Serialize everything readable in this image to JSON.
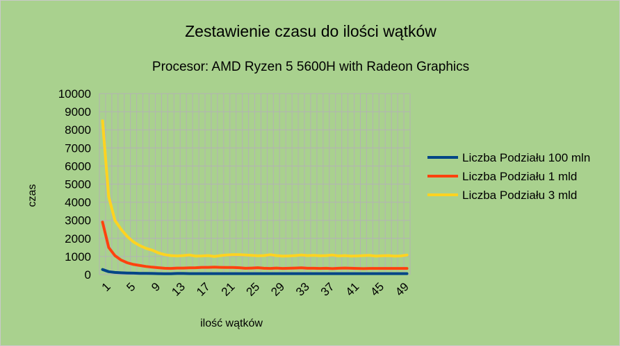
{
  "colors": {
    "chart_background": "#a9d18e",
    "plot_background": "#a9d18e",
    "gridline": "#b3b3b3",
    "series": [
      "#004586",
      "#ff420e",
      "#ffd320"
    ]
  },
  "chart_data": {
    "type": "line",
    "title": "Zestawienie czasu do ilości wątków",
    "subtitle": "Procesor: AMD Ryzen 5 5600H with Radeon Graphics",
    "xlabel": "ilość wątków",
    "ylabel": "czas",
    "ylim": [
      0,
      10000
    ],
    "y_ticks": [
      "0",
      "1000",
      "2000",
      "3000",
      "4000",
      "5000",
      "6000",
      "7000",
      "8000",
      "9000",
      "10000"
    ],
    "x": [
      1,
      2,
      3,
      4,
      5,
      6,
      7,
      8,
      9,
      10,
      11,
      12,
      13,
      14,
      15,
      16,
      17,
      18,
      19,
      20,
      21,
      22,
      23,
      24,
      25,
      26,
      27,
      28,
      29,
      30,
      31,
      32,
      33,
      34,
      35,
      36,
      37,
      38,
      39,
      40,
      41,
      42,
      43,
      44,
      45,
      46,
      47,
      48,
      49,
      50
    ],
    "x_tick_labels": [
      "1",
      "5",
      "9",
      "13",
      "17",
      "21",
      "25",
      "29",
      "33",
      "37",
      "41",
      "45",
      "49"
    ],
    "grid": true,
    "legend_position": "right",
    "series": [
      {
        "name": "Liczba Podziału 100 mln",
        "values": [
          280,
          160,
          120,
          100,
          90,
          80,
          70,
          65,
          60,
          55,
          50,
          50,
          60,
          60,
          55,
          55,
          55,
          55,
          55,
          55,
          55,
          55,
          55,
          55,
          55,
          55,
          55,
          55,
          55,
          55,
          55,
          55,
          55,
          55,
          55,
          55,
          55,
          55,
          55,
          55,
          55,
          55,
          55,
          55,
          55,
          55,
          55,
          55,
          55,
          55
        ]
      },
      {
        "name": "Liczba Podziału 1 mld",
        "values": [
          2900,
          1500,
          1050,
          800,
          650,
          560,
          500,
          450,
          410,
          380,
          350,
          340,
          360,
          360,
          370,
          380,
          400,
          400,
          410,
          400,
          390,
          390,
          380,
          350,
          360,
          380,
          350,
          340,
          360,
          340,
          350,
          360,
          370,
          350,
          350,
          340,
          350,
          330,
          350,
          360,
          350,
          340,
          330,
          340,
          340,
          340,
          340,
          340,
          340,
          340
        ]
      },
      {
        "name": "Liczba Podziału 3 mld",
        "values": [
          8500,
          4300,
          3000,
          2500,
          2100,
          1800,
          1600,
          1450,
          1350,
          1200,
          1100,
          1050,
          1030,
          1050,
          1080,
          1020,
          1030,
          1050,
          1000,
          1050,
          1080,
          1100,
          1100,
          1080,
          1060,
          1040,
          1050,
          1100,
          1050,
          1020,
          1030,
          1050,
          1080,
          1050,
          1060,
          1040,
          1050,
          1080,
          1030,
          1050,
          1020,
          1030,
          1050,
          1060,
          1020,
          1040,
          1050,
          1020,
          1030,
          1080
        ]
      }
    ]
  }
}
